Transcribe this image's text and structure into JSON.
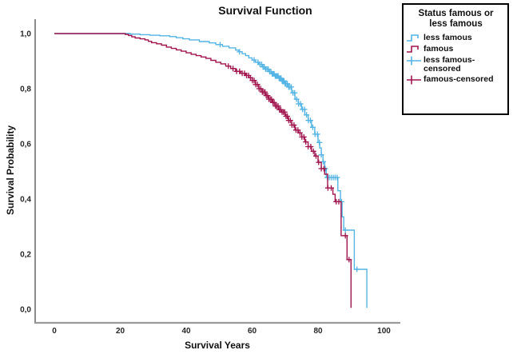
{
  "chart": {
    "title": "Survival Function",
    "xlabel": "Survival Years",
    "ylabel": "Survival Probability"
  },
  "legend": {
    "title_line1": "Status famous or",
    "title_line2": "less famous",
    "items": [
      {
        "label": "less famous",
        "glyph": "step-line",
        "color": "#54B4E4"
      },
      {
        "label": "famous",
        "glyph": "step-line",
        "color": "#A0154E"
      },
      {
        "label": "less famous-censored",
        "glyph": "plus-censored",
        "color": "#54B4E4"
      },
      {
        "label": "famous-censored",
        "glyph": "plus-censored",
        "color": "#A0154E"
      }
    ]
  },
  "chart_data": {
    "type": "line",
    "subtype": "kaplan-meier-step",
    "title": "Survival Function",
    "xlabel": "Survival Years",
    "ylabel": "Survival Probability",
    "xlim": [
      0,
      105
    ],
    "ylim": [
      0,
      1
    ],
    "grid": false,
    "legend_position": "outside-top-right",
    "x_ticks": [
      {
        "value": 0,
        "label": "0"
      },
      {
        "value": 20,
        "label": "20"
      },
      {
        "value": 40,
        "label": "40"
      },
      {
        "value": 60,
        "label": "60"
      },
      {
        "value": 80,
        "label": "80"
      },
      {
        "value": 100,
        "label": "100"
      }
    ],
    "y_ticks": [
      {
        "value": 1.0,
        "label": "1,0"
      },
      {
        "value": 0.8,
        "label": "0,8"
      },
      {
        "value": 0.6,
        "label": "0,6"
      },
      {
        "value": 0.4,
        "label": "0,4"
      },
      {
        "value": 0.2,
        "label": "0,2"
      },
      {
        "value": 0.0,
        "label": "0,0"
      }
    ],
    "series": [
      {
        "name": "less famous",
        "color": "#54B4E4",
        "steps": [
          [
            0,
            1
          ],
          [
            21,
            1
          ],
          [
            23,
            0.998
          ],
          [
            26,
            0.996
          ],
          [
            29,
            0.994
          ],
          [
            32,
            0.992
          ],
          [
            35,
            0.989
          ],
          [
            37,
            0.985
          ],
          [
            39,
            0.981
          ],
          [
            41,
            0.977
          ],
          [
            44,
            0.971
          ],
          [
            47,
            0.966
          ],
          [
            49,
            0.96
          ],
          [
            51,
            0.954
          ],
          [
            53,
            0.948
          ],
          [
            55,
            0.94
          ],
          [
            56,
            0.934
          ],
          [
            57,
            0.927
          ],
          [
            58,
            0.92
          ],
          [
            59,
            0.912
          ],
          [
            60,
            0.904
          ],
          [
            61,
            0.896
          ],
          [
            62,
            0.888
          ],
          [
            63,
            0.879
          ],
          [
            64,
            0.871
          ],
          [
            65,
            0.862
          ],
          [
            66,
            0.854
          ],
          [
            67,
            0.846
          ],
          [
            68,
            0.838
          ],
          [
            69,
            0.828
          ],
          [
            70,
            0.818
          ],
          [
            71,
            0.806
          ],
          [
            72,
            0.785
          ],
          [
            73,
            0.762
          ],
          [
            74,
            0.745
          ],
          [
            75,
            0.725
          ],
          [
            76,
            0.705
          ],
          [
            77,
            0.685
          ],
          [
            78,
            0.66
          ],
          [
            79,
            0.635
          ],
          [
            80,
            0.605
          ],
          [
            80.5,
            0.585
          ],
          [
            81,
            0.56
          ],
          [
            81.5,
            0.535
          ],
          [
            82,
            0.51
          ],
          [
            82.5,
            0.478
          ],
          [
            86,
            0.43
          ],
          [
            86.8,
            0.39
          ],
          [
            87.3,
            0.335
          ],
          [
            87.8,
            0.287
          ],
          [
            91,
            0.145
          ],
          [
            94.8,
            0.005
          ]
        ],
        "censored_years": [
          50.3,
          56.2,
          60.6,
          61.8,
          62.4,
          62.9,
          63.3,
          63.7,
          64.1,
          64.5,
          64.9,
          65.3,
          65.7,
          66.1,
          66.4,
          66.7,
          67.0,
          67.3,
          67.6,
          67.9,
          68.2,
          68.5,
          68.8,
          69.1,
          69.4,
          69.7,
          70.0,
          70.3,
          70.7,
          71.1,
          71.5,
          71.9,
          72.4,
          72.9,
          73.5,
          74.1,
          74.7,
          75.3,
          75.9,
          76.5,
          77.1,
          77.7,
          78.4,
          79.1,
          79.8,
          80.4,
          81.0,
          81.6,
          82.2,
          82.8,
          83.4,
          84.0,
          84.6,
          85.2,
          85.8,
          87.1,
          88.3,
          91.8
        ]
      },
      {
        "name": "famous",
        "color": "#A0154E",
        "steps": [
          [
            0,
            1
          ],
          [
            20,
            1
          ],
          [
            21.5,
            0.997
          ],
          [
            22.5,
            0.993
          ],
          [
            23.5,
            0.988
          ],
          [
            24.5,
            0.984
          ],
          [
            26,
            0.981
          ],
          [
            27.5,
            0.977
          ],
          [
            28.5,
            0.972
          ],
          [
            29.5,
            0.967
          ],
          [
            31,
            0.963
          ],
          [
            32.5,
            0.958
          ],
          [
            34,
            0.951
          ],
          [
            35.5,
            0.946
          ],
          [
            37,
            0.941
          ],
          [
            38.5,
            0.936
          ],
          [
            40,
            0.93
          ],
          [
            41.5,
            0.925
          ],
          [
            43,
            0.92
          ],
          [
            44.5,
            0.915
          ],
          [
            46,
            0.91
          ],
          [
            47.5,
            0.903
          ],
          [
            49,
            0.896
          ],
          [
            50.5,
            0.89
          ],
          [
            52,
            0.882
          ],
          [
            53.5,
            0.873
          ],
          [
            55,
            0.863
          ],
          [
            56.5,
            0.856
          ],
          [
            58,
            0.848
          ],
          [
            59,
            0.84
          ],
          [
            60,
            0.83
          ],
          [
            61,
            0.815
          ],
          [
            62,
            0.8
          ],
          [
            63,
            0.788
          ],
          [
            64,
            0.775
          ],
          [
            65,
            0.762
          ],
          [
            66,
            0.75
          ],
          [
            67,
            0.737
          ],
          [
            68,
            0.724
          ],
          [
            69,
            0.715
          ],
          [
            70,
            0.7
          ],
          [
            71,
            0.685
          ],
          [
            72,
            0.668
          ],
          [
            73,
            0.65
          ],
          [
            74,
            0.64
          ],
          [
            75,
            0.625
          ],
          [
            76,
            0.607
          ],
          [
            77,
            0.59
          ],
          [
            78,
            0.573
          ],
          [
            79,
            0.556
          ],
          [
            80,
            0.533
          ],
          [
            81,
            0.51
          ],
          [
            82,
            0.49
          ],
          [
            82.9,
            0.44
          ],
          [
            84.5,
            0.417
          ],
          [
            85.2,
            0.39
          ],
          [
            87,
            0.267
          ],
          [
            88.8,
            0.18
          ],
          [
            90,
            0.005
          ]
        ],
        "censored_years": [
          52.8,
          54.2,
          55.3,
          56.2,
          57.0,
          57.7,
          58.3,
          58.9,
          59.5,
          60.1,
          60.6,
          61.1,
          61.6,
          62.1,
          62.6,
          63.1,
          63.5,
          63.9,
          64.3,
          64.7,
          65.1,
          65.5,
          65.9,
          66.3,
          66.7,
          67.1,
          67.5,
          67.9,
          68.3,
          68.7,
          69.1,
          69.5,
          69.9,
          70.3,
          70.7,
          71.1,
          71.6,
          72.1,
          72.7,
          73.3,
          73.9,
          74.5,
          75.1,
          75.7,
          76.3,
          77.0,
          77.8,
          78.6,
          79.4,
          80.2,
          81.0,
          81.8,
          83.0,
          84.0,
          85.5,
          86.3,
          88.3,
          89.4
        ]
      }
    ],
    "axis_colors": {
      "x_axis": "#9A9A9A",
      "y_axis": "#5A5A5A",
      "tick_label": "#262626"
    }
  }
}
